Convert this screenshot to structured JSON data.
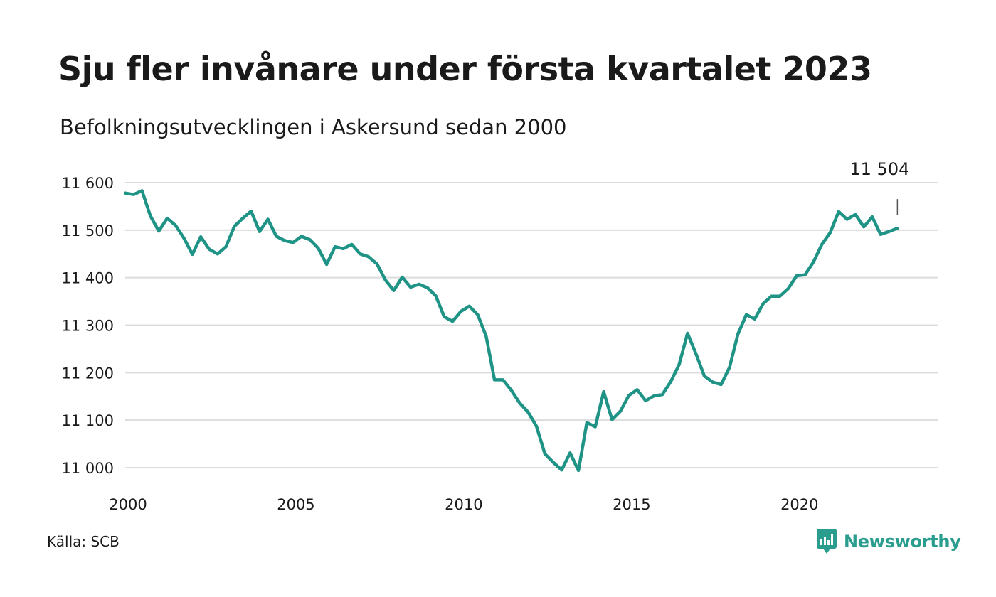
{
  "title": "Sju fler invånare under första kvartalet 2023",
  "subtitle": "Befolkningsutvecklingen i Askersund sedan 2000",
  "source": "Källa: SCB",
  "brand": "Newsworthy",
  "colors": {
    "line": "#1f9486",
    "grid": "#dcdcdc",
    "brand": "#2a9d8f"
  },
  "chart_data": {
    "type": "line",
    "title": "Sju fler invånare under första kvartalet 2023",
    "subtitle": "Befolkningsutvecklingen i Askersund sedan 2000",
    "xlabel": "",
    "ylabel": "",
    "xlim": [
      2000,
      2024.2
    ],
    "ylim": [
      11000,
      11600
    ],
    "x_ticks": [
      2000,
      2005,
      2010,
      2015,
      2020
    ],
    "y_ticks": [
      11000,
      11100,
      11200,
      11300,
      11400,
      11500,
      11600
    ],
    "y_tick_labels": [
      "11 000",
      "11 100",
      "11 200",
      "11 300",
      "11 400",
      "11 500",
      "11 600"
    ],
    "grid": true,
    "legend": "none",
    "last_value_label": "11 504",
    "x": [
      2000.0,
      2000.25,
      2000.5,
      2000.75,
      2001.0,
      2001.25,
      2001.5,
      2001.75,
      2002.0,
      2002.25,
      2002.5,
      2002.75,
      2003.0,
      2003.25,
      2003.5,
      2003.75,
      2004.0,
      2004.25,
      2004.5,
      2004.75,
      2005.0,
      2005.25,
      2005.5,
      2005.75,
      2006.0,
      2006.25,
      2006.5,
      2006.75,
      2007.0,
      2007.25,
      2007.5,
      2007.75,
      2008.0,
      2008.25,
      2008.5,
      2008.75,
      2009.0,
      2009.25,
      2009.5,
      2009.75,
      2010.0,
      2010.25,
      2010.5,
      2010.75,
      2011.0,
      2011.25,
      2011.5,
      2011.75,
      2012.0,
      2012.25,
      2012.5,
      2012.75,
      2013.0,
      2013.25,
      2013.5,
      2013.75,
      2014.0,
      2014.25,
      2014.5,
      2014.75,
      2015.0,
      2015.25,
      2015.5,
      2015.75,
      2016.0,
      2016.25,
      2016.5,
      2016.75,
      2017.0,
      2017.25,
      2017.5,
      2017.75,
      2018.0,
      2018.25,
      2018.5,
      2018.75,
      2019.0,
      2019.25,
      2019.5,
      2019.75,
      2020.0,
      2020.25,
      2020.5,
      2020.75,
      2021.0,
      2021.25,
      2021.5,
      2021.75,
      2022.0,
      2022.25,
      2022.5,
      2022.75,
      2023.0
    ],
    "series": [
      {
        "values": [
          11578,
          11575,
          11583,
          11530,
          11498,
          11525,
          11510,
          11483,
          11449,
          11486,
          11460,
          11450,
          11465,
          11508,
          11525,
          11540,
          11497,
          11523,
          11487,
          11478,
          11474,
          11487,
          11480,
          11462,
          11428,
          11465,
          11461,
          11470,
          11450,
          11444,
          11429,
          11395,
          11373,
          11401,
          11380,
          11386,
          11379,
          11362,
          11318,
          11308,
          11329,
          11340,
          11322,
          11277,
          11185,
          11185,
          11163,
          11136,
          11117,
          11087,
          11029,
          11011,
          10995,
          11031,
          10994,
          11095,
          11086,
          11160,
          11101,
          11119,
          11152,
          11164,
          11141,
          11151,
          11154,
          11181,
          11217,
          11283,
          11240,
          11193,
          11180,
          11175,
          11211,
          11281,
          11322,
          11313,
          11345,
          11361,
          11361,
          11377,
          11404,
          11406,
          11433,
          11470,
          11495,
          11539,
          11523,
          11533,
          11507,
          11528,
          11491,
          11497,
          11504
        ]
      }
    ]
  }
}
